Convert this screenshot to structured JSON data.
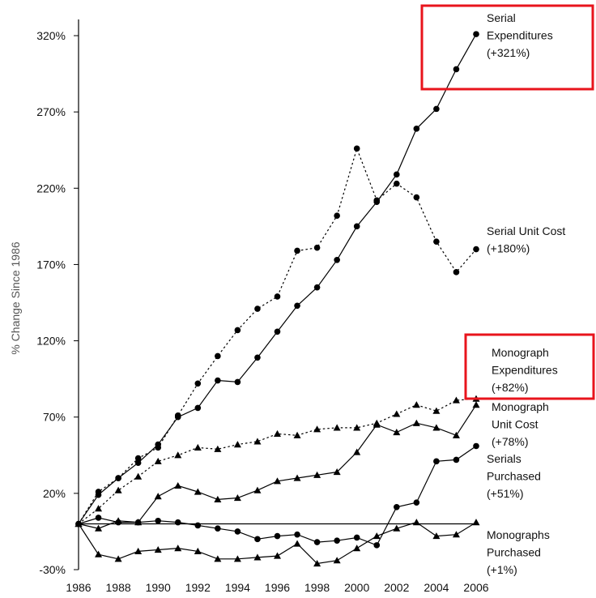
{
  "chart_data": {
    "type": "line",
    "title": "",
    "xlabel": "",
    "ylabel": "% Change Since 1986",
    "x": [
      1986,
      1987,
      1988,
      1989,
      1990,
      1991,
      1992,
      1993,
      1994,
      1995,
      1996,
      1997,
      1998,
      1999,
      2000,
      2001,
      2002,
      2003,
      2004,
      2005,
      2006
    ],
    "xticks": [
      "1986",
      "1988",
      "1990",
      "1992",
      "1994",
      "1996",
      "1998",
      "2000",
      "2002",
      "2004",
      "2006"
    ],
    "ylim": [
      -30,
      320
    ],
    "yticks": [
      "-30%",
      "20%",
      "70%",
      "120%",
      "170%",
      "220%",
      "270%",
      "320%"
    ],
    "grid": false,
    "series": [
      {
        "label_lines": [
          "Serial",
          "Expenditures",
          "(+321%)"
        ],
        "line_style": "solid",
        "marker": "circle",
        "highlighted": true,
        "values": [
          0,
          19,
          30,
          40,
          52,
          70,
          76,
          94,
          93,
          109,
          126,
          143,
          155,
          173,
          195,
          211,
          229,
          259,
          272,
          298,
          321
        ]
      },
      {
        "label_lines": [
          "Serial Unit Cost",
          "(+180%)"
        ],
        "line_style": "dotted",
        "marker": "circle",
        "highlighted": false,
        "values": [
          0,
          21,
          30,
          43,
          50,
          71,
          92,
          110,
          127,
          141,
          149,
          179,
          181,
          202,
          246,
          212,
          223,
          214,
          185,
          165,
          180
        ]
      },
      {
        "label_lines": [
          "Monograph",
          "Expenditures",
          "(+82%)"
        ],
        "line_style": "dotted",
        "marker": "triangle",
        "highlighted": true,
        "values": [
          0,
          10,
          22,
          31,
          41,
          45,
          50,
          49,
          52,
          54,
          59,
          58,
          62,
          63,
          63,
          66,
          72,
          78,
          74,
          81,
          82
        ]
      },
      {
        "label_lines": [
          "Monograph",
          "Unit Cost",
          "(+78%)"
        ],
        "line_style": "solid",
        "marker": "triangle",
        "highlighted": false,
        "values": [
          0,
          -3,
          2,
          1,
          18,
          25,
          21,
          16,
          17,
          22,
          28,
          30,
          32,
          34,
          47,
          65,
          60,
          66,
          63,
          58,
          78
        ]
      },
      {
        "label_lines": [
          "Serials",
          "Purchased",
          "(+51%)"
        ],
        "line_style": "solid",
        "marker": "circle",
        "highlighted": false,
        "values": [
          0,
          4,
          1,
          1,
          2,
          1,
          -1,
          -3,
          -5,
          -10,
          -8,
          -7,
          -12,
          -11,
          -9,
          -14,
          11,
          14,
          41,
          42,
          51
        ]
      },
      {
        "label_lines": [
          "Monographs",
          "Purchased",
          "(+1%)"
        ],
        "line_style": "solid",
        "marker": "triangle",
        "highlighted": false,
        "values": [
          0,
          -20,
          -23,
          -18,
          -17,
          -16,
          -18,
          -23,
          -23,
          -22,
          -21,
          -13,
          -26,
          -24,
          -16,
          -8,
          -3,
          1,
          -8,
          -7,
          1
        ]
      }
    ],
    "highlight_color": "#e8141c"
  }
}
